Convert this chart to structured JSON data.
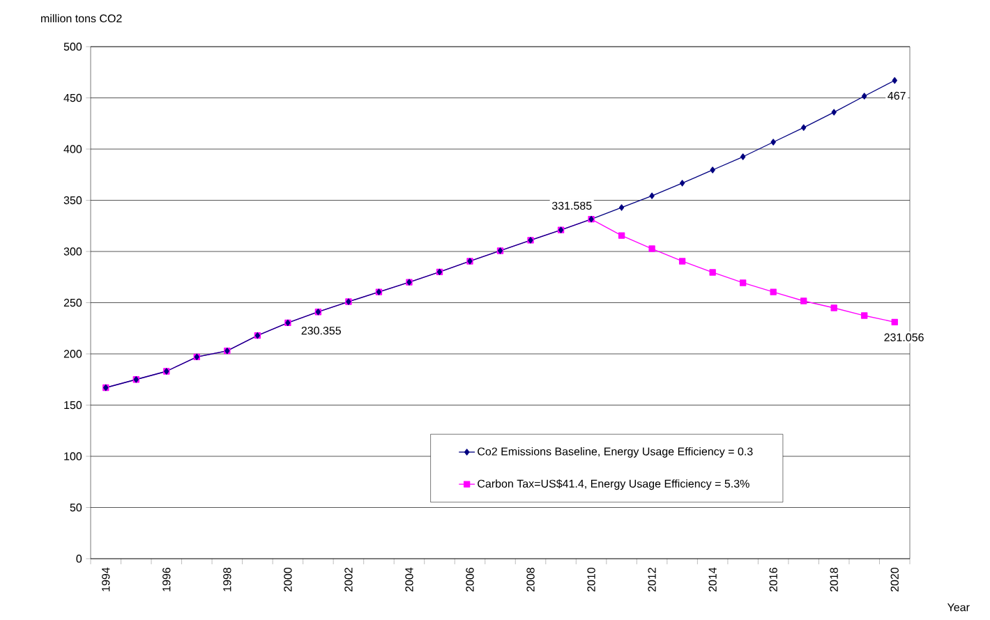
{
  "chart_data": {
    "type": "line",
    "ylabel": "million tons CO2",
    "xlabel": "Year",
    "categories": [
      "1994",
      null,
      "1996",
      null,
      "1998",
      null,
      "2000",
      null,
      "2002",
      null,
      "2004",
      null,
      "2006",
      null,
      "2008",
      null,
      "2010",
      null,
      "2012",
      null,
      "2014",
      null,
      "2016",
      null,
      "2018",
      null,
      "2020"
    ],
    "series": [
      {
        "name": "Co2 Emissions Baseline, Energy Usage Efficiency = 0.3",
        "color": "#000080",
        "marker": "diamond",
        "values": [
          167,
          175,
          183,
          197,
          203,
          218,
          230.355,
          241,
          251,
          260.5,
          270,
          280,
          290.5,
          300.7,
          311,
          321,
          331.585,
          342.9,
          354.4,
          366.7,
          379.6,
          392.5,
          406.8,
          421,
          436,
          451.7,
          467
        ]
      },
      {
        "name": "Carbon Tax=US$41.4, Energy Usage Efficiency = 5.3%",
        "color": "#ff00ff",
        "marker": "square",
        "values": [
          167,
          175,
          183,
          197,
          203,
          218,
          230.355,
          241,
          251,
          260.5,
          270,
          280,
          290.5,
          300.7,
          311,
          321,
          331.585,
          315.6,
          302.7,
          290.5,
          279.6,
          269.4,
          260.5,
          251.7,
          244.9,
          237.4,
          231.056
        ]
      }
    ],
    "ylim": [
      0,
      500
    ],
    "yticks": [
      0,
      50,
      100,
      150,
      200,
      250,
      300,
      350,
      400,
      450,
      500
    ],
    "grid": "y",
    "legend": "bottom",
    "annotations": [
      {
        "text": "331.585",
        "x": "2010",
        "y": 331.585
      },
      {
        "text": "230.355",
        "x": "2000",
        "y": 230.355
      },
      {
        "text": "467",
        "x": "2020",
        "y": 467
      },
      {
        "text": "231.056",
        "x": "2020",
        "y": 231.056
      }
    ]
  }
}
